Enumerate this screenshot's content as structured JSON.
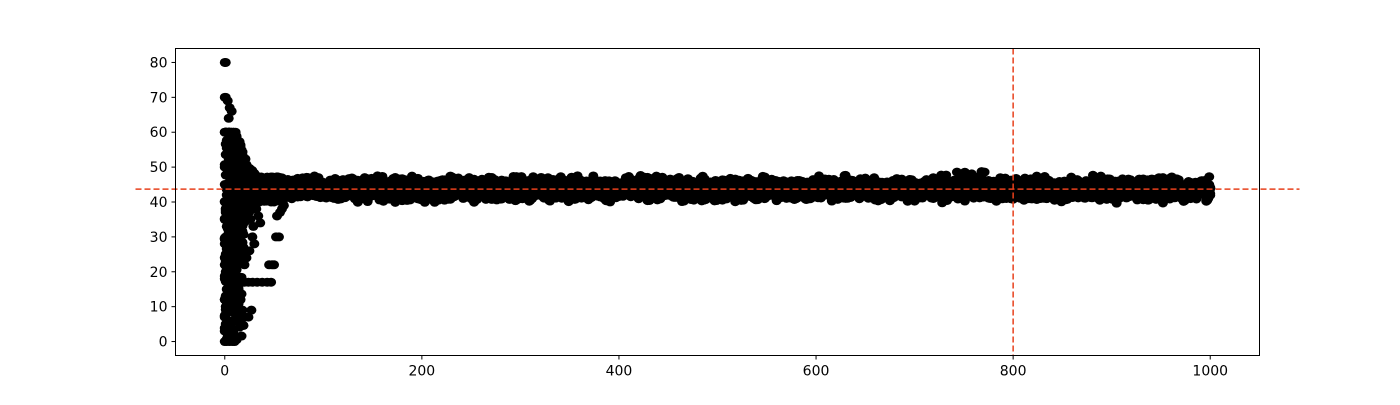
{
  "chart_data": {
    "type": "scatter",
    "xlim": [
      -50,
      1050
    ],
    "ylim": [
      -4,
      84
    ],
    "x_ticks": [
      0,
      200,
      400,
      600,
      800,
      1000
    ],
    "y_ticks": [
      0,
      10,
      20,
      30,
      40,
      50,
      60,
      70,
      80
    ],
    "x_tick_labels": [
      "0",
      "200",
      "400",
      "600",
      "800",
      "1000"
    ],
    "y_tick_labels": [
      "0",
      "10",
      "20",
      "30",
      "40",
      "50",
      "60",
      "70",
      "80"
    ],
    "grid": false,
    "point_color": "#000000",
    "reference_lines": [
      {
        "orientation": "horizontal",
        "value": 43.7,
        "color": "#e8401c",
        "style": "dashed"
      },
      {
        "orientation": "vertical",
        "value": 800,
        "color": "#e8401c",
        "style": "dashed"
      }
    ],
    "series": [
      {
        "description_points": "iterative estimate: early scatter 0-80 for x<60, then converging band 40-48",
        "early_points": [
          [
            0,
            80
          ],
          [
            1,
            80
          ],
          [
            0,
            70
          ],
          [
            1,
            70
          ],
          [
            3,
            69
          ],
          [
            5,
            67
          ],
          [
            7,
            66
          ],
          [
            4,
            64
          ],
          [
            0,
            60
          ],
          [
            2,
            60
          ],
          [
            4,
            60
          ],
          [
            7,
            60
          ],
          [
            9,
            60
          ],
          [
            3,
            56
          ],
          [
            4,
            53
          ],
          [
            8,
            53
          ],
          [
            11,
            53
          ],
          [
            13,
            53
          ],
          [
            0,
            50
          ],
          [
            2,
            50
          ],
          [
            5,
            49
          ],
          [
            8,
            48
          ],
          [
            12,
            47
          ],
          [
            15,
            47
          ],
          [
            18,
            46
          ],
          [
            21,
            45
          ],
          [
            25,
            44
          ],
          [
            30,
            43
          ],
          [
            0,
            45
          ],
          [
            2,
            42
          ],
          [
            0,
            40
          ],
          [
            1,
            38
          ],
          [
            0,
            35
          ],
          [
            2,
            33
          ],
          [
            4,
            31
          ],
          [
            1,
            30
          ],
          [
            0,
            28
          ],
          [
            2,
            25
          ],
          [
            0,
            22
          ],
          [
            1,
            20
          ],
          [
            0,
            18
          ],
          [
            2,
            15
          ],
          [
            0,
            12
          ],
          [
            1,
            10
          ],
          [
            0,
            7
          ],
          [
            1,
            5
          ],
          [
            0,
            3
          ],
          [
            0,
            0
          ],
          [
            2,
            0
          ],
          [
            5,
            0
          ],
          [
            8,
            0
          ],
          [
            10,
            0
          ],
          [
            3,
            2
          ],
          [
            6,
            4
          ],
          [
            9,
            6
          ],
          [
            12,
            8
          ],
          [
            5,
            10
          ],
          [
            8,
            12
          ],
          [
            11,
            14
          ],
          [
            14,
            16
          ],
          [
            6,
            18
          ],
          [
            9,
            20
          ],
          [
            12,
            22
          ],
          [
            15,
            24
          ],
          [
            18,
            26
          ],
          [
            7,
            28
          ],
          [
            10,
            30
          ],
          [
            13,
            32
          ],
          [
            16,
            34
          ],
          [
            19,
            36
          ],
          [
            22,
            38
          ],
          [
            8,
            40
          ],
          [
            11,
            42
          ],
          [
            14,
            44
          ],
          [
            17,
            41
          ],
          [
            20,
            39
          ],
          [
            23,
            37
          ],
          [
            26,
            35
          ],
          [
            29,
            33
          ],
          [
            10,
            25
          ],
          [
            12,
            19
          ],
          [
            14,
            15
          ],
          [
            16,
            12
          ],
          [
            18,
            9
          ],
          [
            20,
            7
          ],
          [
            24,
            7
          ],
          [
            27,
            9
          ],
          [
            17,
            17
          ],
          [
            20,
            17
          ],
          [
            24,
            17
          ],
          [
            28,
            17
          ],
          [
            33,
            17
          ],
          [
            38,
            17
          ],
          [
            43,
            17
          ],
          [
            47,
            17
          ],
          [
            45,
            22
          ],
          [
            48,
            22
          ],
          [
            50,
            22
          ],
          [
            52,
            30
          ],
          [
            55,
            30
          ],
          [
            53,
            36
          ],
          [
            56,
            37
          ],
          [
            58,
            38
          ],
          [
            60,
            39
          ],
          [
            35,
            40
          ],
          [
            38,
            41
          ],
          [
            41,
            42
          ],
          [
            44,
            41
          ],
          [
            47,
            40
          ],
          [
            50,
            40
          ],
          [
            32,
            38
          ],
          [
            34,
            36
          ],
          [
            36,
            34
          ],
          [
            28,
            30
          ],
          [
            30,
            28
          ],
          [
            25,
            26
          ],
          [
            22,
            24
          ],
          [
            20,
            22
          ],
          [
            40,
            44
          ],
          [
            45,
            43
          ],
          [
            50,
            42
          ],
          [
            55,
            41
          ],
          [
            60,
            42
          ],
          [
            65,
            43
          ]
        ],
        "band": {
          "x_range": [
            60,
            1000
          ],
          "y_center": 43.7,
          "y_spread": 3.2
        }
      }
    ]
  }
}
